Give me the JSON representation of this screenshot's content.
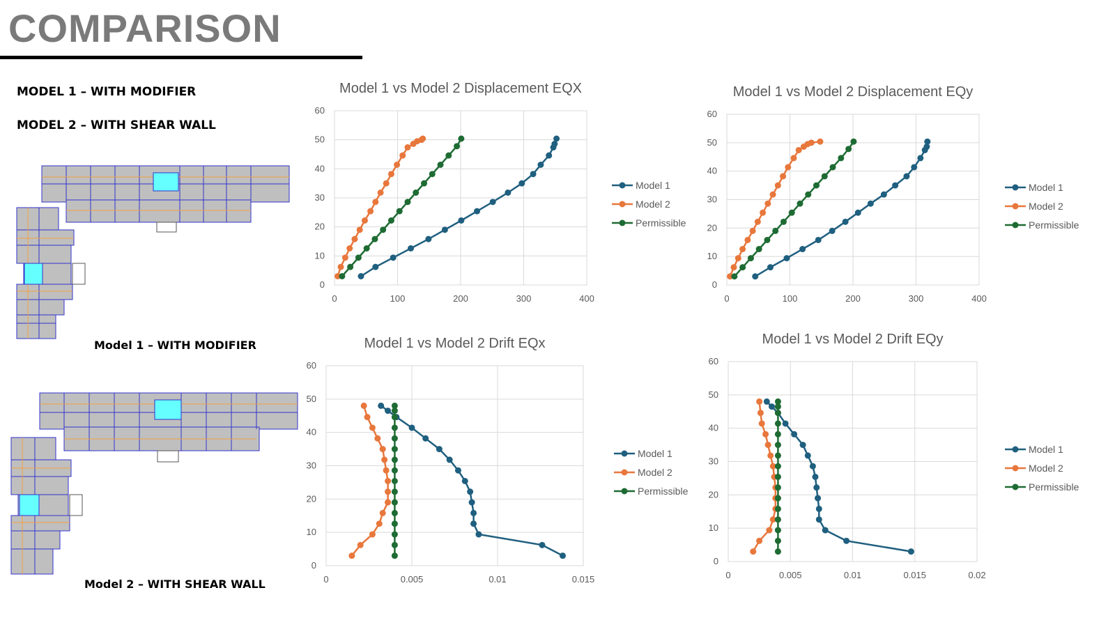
{
  "page": {
    "title": "COMPARISON",
    "model1_label": "MODEL 1 – WITH MODIFIER",
    "model2_label": "MODEL 2 – WITH SHEAR WALL",
    "plan1_caption": "Model 1 – WITH MODIFIER",
    "plan2_caption": "Model 2 – WITH SHEAR WALL"
  },
  "colors": {
    "model1": "#1f5f7f",
    "model2": "#e8773c",
    "permissible": "#1e6b33",
    "grid": "#d9d9d9",
    "axis_text": "#595959",
    "title_text": "#595959",
    "slab": "#bfbfbf",
    "highlight": "#66ffff",
    "beam_orange": "#f0a040",
    "beam_blue": "#3333cc"
  },
  "chart_data": [
    {
      "type": "line",
      "title": "Model 1 vs Model 2 Displacement EQX",
      "xlabel": "",
      "ylabel": "",
      "xlim": [
        0,
        400
      ],
      "ylim": [
        0,
        60
      ],
      "xticks": [
        "0",
        "100",
        "200",
        "300",
        "400"
      ],
      "yticks": [
        "0",
        "10",
        "20",
        "30",
        "40",
        "50",
        "60"
      ],
      "grid": true,
      "legend": "right",
      "series": [
        {
          "name": "Model 1",
          "x": [
            42,
            65,
            93,
            121,
            149,
            175,
            201,
            226,
            251,
            275,
            297,
            315,
            327,
            340,
            347,
            349,
            352
          ],
          "y": [
            3,
            6.2,
            9.4,
            12.6,
            15.8,
            19,
            22.2,
            25.4,
            28.6,
            31.8,
            35,
            38.2,
            41.4,
            44.6,
            47.4,
            48.6,
            50.4
          ]
        },
        {
          "name": "Model 2",
          "x": [
            5,
            10,
            17,
            24,
            32,
            40,
            48,
            57,
            65,
            73,
            82,
            90,
            99,
            108,
            116,
            125,
            131,
            138,
            140
          ],
          "y": [
            3,
            6.2,
            9.4,
            12.6,
            15.8,
            19,
            22.2,
            25.4,
            28.6,
            31.8,
            35,
            38.2,
            41.4,
            44.6,
            47.4,
            48.6,
            49.5,
            50,
            50.4
          ]
        },
        {
          "name": "Permissible",
          "x": [
            12,
            25,
            38,
            51,
            64,
            77,
            90,
            103,
            116,
            129,
            142,
            155,
            168,
            181,
            194,
            201
          ],
          "y": [
            3,
            6.2,
            9.4,
            12.6,
            15.8,
            19,
            22.2,
            25.4,
            28.6,
            31.8,
            35,
            38.2,
            41.4,
            44.6,
            47.8,
            50.4
          ]
        }
      ]
    },
    {
      "type": "line",
      "title": "Model 1 vs Model 2 Displacement EQy",
      "xlabel": "",
      "ylabel": "",
      "xlim": [
        0,
        400
      ],
      "ylim": [
        0,
        60
      ],
      "xticks": [
        "0",
        "100",
        "200",
        "300",
        "400"
      ],
      "yticks": [
        "0",
        "10",
        "20",
        "30",
        "40",
        "50",
        "60"
      ],
      "grid": true,
      "legend": "right",
      "series": [
        {
          "name": "Model 1",
          "x": [
            45,
            69,
            95,
            120,
            145,
            167,
            188,
            208,
            228,
            249,
            267,
            285,
            297,
            307,
            314,
            317,
            318
          ],
          "y": [
            3,
            6.2,
            9.4,
            12.6,
            15.8,
            19,
            22.2,
            25.4,
            28.6,
            31.8,
            35,
            38.2,
            41.4,
            44.6,
            47.4,
            48.6,
            50.4
          ]
        },
        {
          "name": "Model 2",
          "x": [
            5,
            11,
            18,
            25,
            33,
            41,
            49,
            57,
            65,
            73,
            81,
            89,
            97,
            106,
            114,
            122,
            128,
            134,
            148
          ],
          "y": [
            3,
            6.2,
            9.4,
            12.6,
            15.8,
            19,
            22.2,
            25.4,
            28.6,
            31.8,
            35,
            38.2,
            41.4,
            44.6,
            47.4,
            48.6,
            49.5,
            50,
            50.4
          ]
        },
        {
          "name": "Permissible",
          "x": [
            12,
            25,
            38,
            51,
            64,
            77,
            90,
            103,
            116,
            129,
            142,
            155,
            168,
            181,
            193,
            201
          ],
          "y": [
            3,
            6.2,
            9.4,
            12.6,
            15.8,
            19,
            22.2,
            25.4,
            28.6,
            31.8,
            35,
            38.2,
            41.4,
            44.6,
            47.8,
            50.4
          ]
        }
      ]
    },
    {
      "type": "line",
      "title": "Model 1 vs Model 2 Drift EQx",
      "xlabel": "",
      "ylabel": "",
      "xlim": [
        0,
        0.015
      ],
      "ylim": [
        0,
        60
      ],
      "xticks": [
        "0",
        "0.005",
        "0.01",
        "0.015"
      ],
      "yticks": [
        "0",
        "10",
        "20",
        "30",
        "40",
        "50",
        "60"
      ],
      "grid": true,
      "legend": "right",
      "series": [
        {
          "name": "Model 1",
          "x": [
            0.0138,
            0.0126,
            0.0089,
            0.0086,
            0.0086,
            0.0085,
            0.0084,
            0.0081,
            0.0077,
            0.0072,
            0.0066,
            0.0058,
            0.005,
            0.0041,
            0.0036,
            0.0032
          ],
          "y": [
            3,
            6.2,
            9.4,
            12.6,
            15.8,
            19,
            22.2,
            25.4,
            28.6,
            31.8,
            35,
            38.2,
            41.4,
            44.6,
            46.5,
            48
          ]
        },
        {
          "name": "Model 2",
          "x": [
            0.0015,
            0.002,
            0.0027,
            0.0031,
            0.0033,
            0.0036,
            0.0036,
            0.0036,
            0.0035,
            0.0034,
            0.0033,
            0.003,
            0.0027,
            0.0024,
            0.0022
          ],
          "y": [
            3,
            6.2,
            9.4,
            12.6,
            15.8,
            19,
            22.2,
            25.4,
            28.6,
            31.8,
            35,
            38.2,
            41.4,
            44.6,
            48
          ]
        },
        {
          "name": "Permissible",
          "x": [
            0.004,
            0.004,
            0.004,
            0.004,
            0.004,
            0.004,
            0.004,
            0.004,
            0.004,
            0.004,
            0.004,
            0.004,
            0.004,
            0.004,
            0.004,
            0.004
          ],
          "y": [
            3,
            6.2,
            9.4,
            12.6,
            15.8,
            19,
            22.2,
            25.4,
            28.6,
            31.8,
            35,
            38.2,
            41.4,
            44.6,
            46.5,
            48
          ]
        }
      ]
    },
    {
      "type": "line",
      "title": "Model 1 vs Model 2 Drift EQy",
      "xlabel": "",
      "ylabel": "",
      "xlim": [
        0,
        0.02
      ],
      "ylim": [
        0,
        60
      ],
      "xticks": [
        "0",
        "0.005",
        "0.01",
        "0.015",
        "0.02"
      ],
      "yticks": [
        "0",
        "10",
        "20",
        "30",
        "40",
        "50",
        "60"
      ],
      "grid": true,
      "legend": "right",
      "series": [
        {
          "name": "Model 1",
          "x": [
            0.0147,
            0.0095,
            0.0078,
            0.0073,
            0.0073,
            0.0072,
            0.0071,
            0.007,
            0.0068,
            0.0064,
            0.006,
            0.0053,
            0.0046,
            0.004,
            0.0035,
            0.0031
          ],
          "y": [
            3,
            6.2,
            9.4,
            12.6,
            15.8,
            19,
            22.2,
            25.4,
            28.6,
            31.8,
            35,
            38.2,
            41.4,
            44.6,
            46.5,
            48
          ]
        },
        {
          "name": "Model 2",
          "x": [
            0.002,
            0.0025,
            0.0033,
            0.0036,
            0.0038,
            0.0038,
            0.0038,
            0.0037,
            0.0036,
            0.0034,
            0.0032,
            0.003,
            0.0027,
            0.0026,
            0.0025
          ],
          "y": [
            3,
            6.2,
            9.4,
            12.6,
            15.8,
            19,
            22.2,
            25.4,
            28.6,
            31.8,
            35,
            38.2,
            41.4,
            44.6,
            48
          ]
        },
        {
          "name": "Permissible",
          "x": [
            0.004,
            0.004,
            0.004,
            0.004,
            0.004,
            0.004,
            0.004,
            0.004,
            0.004,
            0.004,
            0.004,
            0.004,
            0.004,
            0.004,
            0.004,
            0.004
          ],
          "y": [
            3,
            6.2,
            9.4,
            12.6,
            15.8,
            19,
            22.2,
            25.4,
            28.6,
            31.8,
            35,
            38.2,
            41.4,
            44.6,
            46.5,
            48
          ]
        }
      ]
    }
  ]
}
